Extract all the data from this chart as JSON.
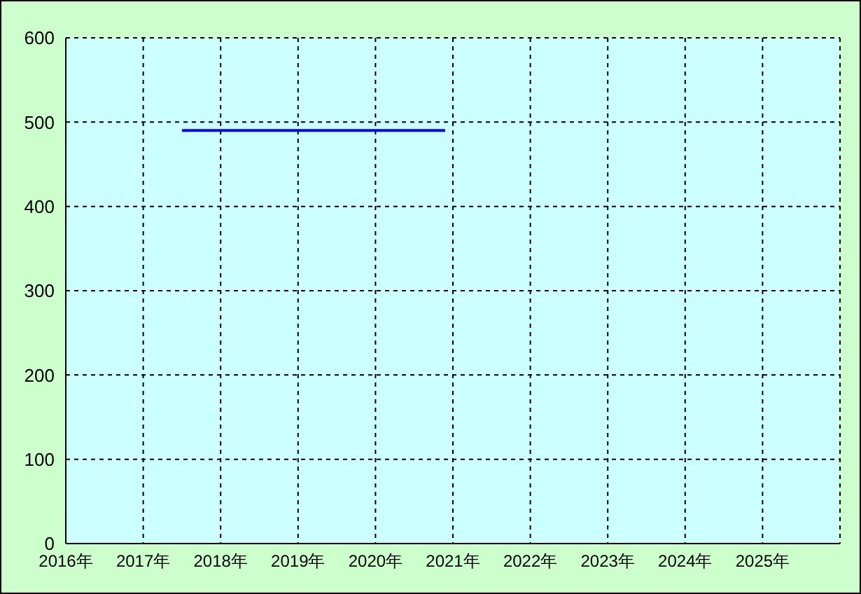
{
  "chart_data": {
    "type": "line",
    "x": [
      2017.5,
      2020.9
    ],
    "series": [
      {
        "color": "#0000ff",
        "values": [
          490,
          490
        ]
      }
    ],
    "xlim": [
      2016,
      2026
    ],
    "xticks": [
      {
        "value": 2016,
        "label": "2016年"
      },
      {
        "value": 2017,
        "label": "2017年"
      },
      {
        "value": 2018,
        "label": "2018年"
      },
      {
        "value": 2019,
        "label": "2019年"
      },
      {
        "value": 2020,
        "label": "2020年"
      },
      {
        "value": 2021,
        "label": "2021年"
      },
      {
        "value": 2022,
        "label": "2022年"
      },
      {
        "value": 2023,
        "label": "2023年"
      },
      {
        "value": 2024,
        "label": "2024年"
      },
      {
        "value": 2025,
        "label": "2025年"
      },
      {
        "value": 2026,
        "label": null
      }
    ],
    "ylim": [
      0,
      600
    ],
    "yticks": [
      0,
      100,
      200,
      300,
      400,
      500,
      600
    ],
    "grid": true,
    "marker": "none",
    "line_style": "solid"
  }
}
